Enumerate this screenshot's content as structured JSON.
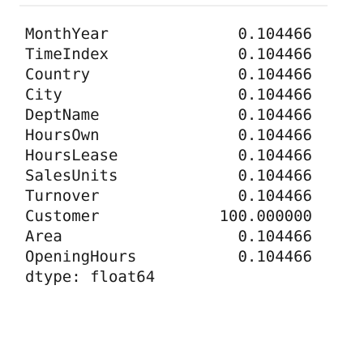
{
  "series_output": {
    "rows": [
      {
        "label": "MonthYear",
        "value": "0.104466"
      },
      {
        "label": "TimeIndex",
        "value": "0.104466"
      },
      {
        "label": "Country",
        "value": "0.104466"
      },
      {
        "label": "City",
        "value": "0.104466"
      },
      {
        "label": "DeptName",
        "value": "0.104466"
      },
      {
        "label": "HoursOwn",
        "value": "0.104466"
      },
      {
        "label": "HoursLease",
        "value": "0.104466"
      },
      {
        "label": "SalesUnits",
        "value": "0.104466"
      },
      {
        "label": "Turnover",
        "value": "0.104466"
      },
      {
        "label": "Customer",
        "value": "100.000000"
      },
      {
        "label": "Area",
        "value": "0.104466"
      },
      {
        "label": "OpeningHours",
        "value": "0.104466"
      }
    ],
    "dtype_line": "dtype: float64"
  }
}
